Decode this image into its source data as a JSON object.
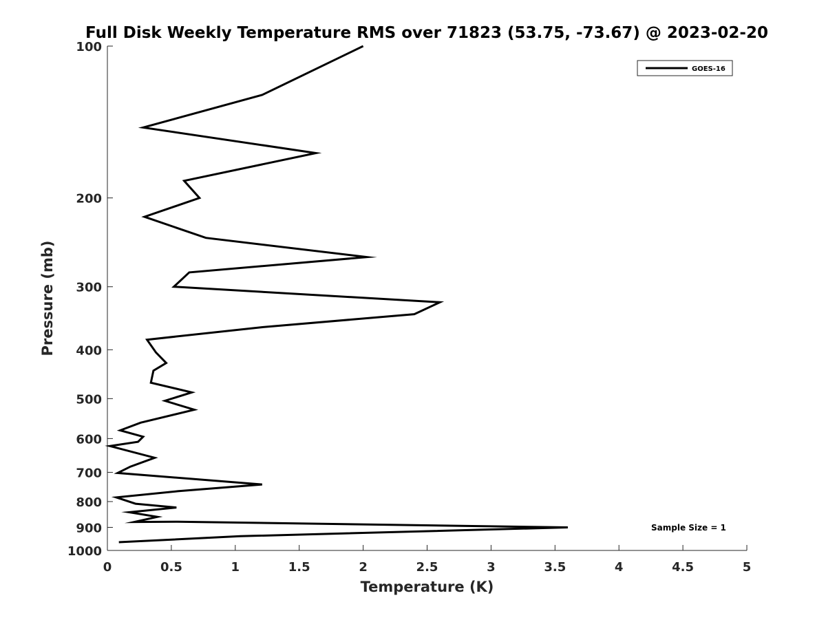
{
  "chart_data": {
    "type": "line",
    "title": "Full Disk Weekly Temperature RMS over 71823 (53.75, -73.67) @ 2023-02-20",
    "xlabel": "Temperature (K)",
    "ylabel": "Pressure (mb)",
    "xlim": [
      0,
      5
    ],
    "ylim": [
      100,
      1000
    ],
    "y_scale": "log",
    "y_reversed": true,
    "xticks": [
      0,
      0.5,
      1,
      1.5,
      2,
      2.5,
      3,
      3.5,
      4,
      4.5,
      5
    ],
    "xtick_labels": [
      "0",
      "0.5",
      "1",
      "1.5",
      "2",
      "2.5",
      "3",
      "3.5",
      "4",
      "4.5",
      "5"
    ],
    "yticks": [
      100,
      200,
      300,
      400,
      500,
      600,
      700,
      800,
      900,
      1000
    ],
    "ytick_labels": [
      "100",
      "200",
      "300",
      "400",
      "500",
      "600",
      "700",
      "800",
      "900",
      "1000"
    ],
    "grid": false,
    "legend_position": "top-right",
    "annotation": "Sample Size = 1",
    "series": [
      {
        "name": "GOES-16",
        "color": "#000000",
        "points": [
          [
            2.0,
            100
          ],
          [
            1.21,
            125
          ],
          [
            0.28,
            145
          ],
          [
            1.63,
            163
          ],
          [
            0.6,
            185
          ],
          [
            0.72,
            200
          ],
          [
            0.29,
            218
          ],
          [
            0.77,
            240
          ],
          [
            2.03,
            262
          ],
          [
            0.64,
            281
          ],
          [
            0.52,
            300
          ],
          [
            2.6,
            322
          ],
          [
            2.4,
            340
          ],
          [
            1.2,
            361
          ],
          [
            0.31,
            382
          ],
          [
            0.38,
            405
          ],
          [
            0.46,
            425
          ],
          [
            0.36,
            440
          ],
          [
            0.34,
            465
          ],
          [
            0.66,
            486
          ],
          [
            0.45,
            505
          ],
          [
            0.68,
            526
          ],
          [
            0.26,
            558
          ],
          [
            0.1,
            578
          ],
          [
            0.28,
            595
          ],
          [
            0.24,
            609
          ],
          [
            0.02,
            621
          ],
          [
            0.37,
            655
          ],
          [
            0.18,
            682
          ],
          [
            0.08,
            702
          ],
          [
            1.21,
            740
          ],
          [
            0.55,
            763
          ],
          [
            0.07,
            785
          ],
          [
            0.22,
            808
          ],
          [
            0.54,
            822
          ],
          [
            0.17,
            840
          ],
          [
            0.39,
            858
          ],
          [
            0.21,
            878
          ],
          [
            0.55,
            877
          ],
          [
            3.6,
            900
          ],
          [
            1.04,
            937
          ],
          [
            0.09,
            963
          ]
        ]
      }
    ]
  }
}
